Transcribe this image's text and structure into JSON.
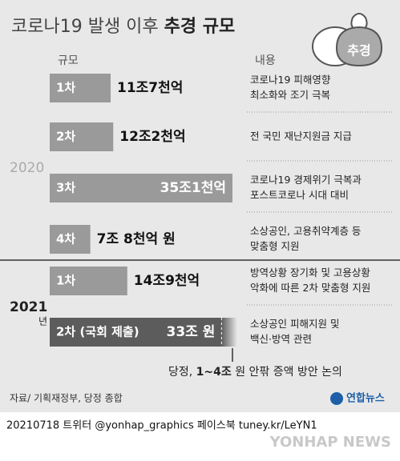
{
  "chart_data": {
    "type": "bar",
    "orientation": "horizontal",
    "title": "코로나19 발생 이후",
    "title_emphasis": "추경 규모",
    "icon_label": "추경",
    "column_headers": [
      "규모",
      "내용"
    ],
    "years": [
      "2020",
      "2021"
    ],
    "year_suffix": "년",
    "categories": [
      "1차",
      "2차",
      "3차",
      "4차",
      "1차",
      "2차 (국회 제출)"
    ],
    "year_of": [
      0,
      0,
      0,
      0,
      1,
      1
    ],
    "values": [
      11.7,
      12.2,
      35.1,
      7.8,
      14.9,
      33
    ],
    "value_labels": [
      "11조7천억",
      "12조2천억",
      "35조1천억",
      "7조 8천억 원",
      "14조9천억",
      "33조 원"
    ],
    "colors": [
      "#9a9a9a",
      "#9a9a9a",
      "#9a9a9a",
      "#9a9a9a",
      "#9a9a9a",
      "#5c5c5c"
    ],
    "descriptions": [
      [
        "코로나19 피해영향",
        "최소화와 조기 극복"
      ],
      [
        "전 국민 재난지원금 지급"
      ],
      [
        "코로나19 경제위기 극복과",
        "포스트코로나 시대 대비"
      ],
      [
        "소상공인, 고용취약계층 등",
        "맞춤형 지원"
      ],
      [
        "방역상황 장기화 및 고용상황",
        "악화에 따른 2차 맞춤형 지원"
      ],
      [
        "소상공인 피해지원 및",
        "백신·방역 관련"
      ]
    ],
    "annotation": [
      "당정, ",
      "1~4조",
      " 원 안팎 증액 방안 논의"
    ],
    "source": "자료/ 기획재정부, 당정 종합",
    "logo": "연합뉴스",
    "footer": "20210718 트위터 @yonhap_graphics  페이스북 tuney.kr/LeYN1",
    "watermark": "YONHAP NEWS"
  }
}
